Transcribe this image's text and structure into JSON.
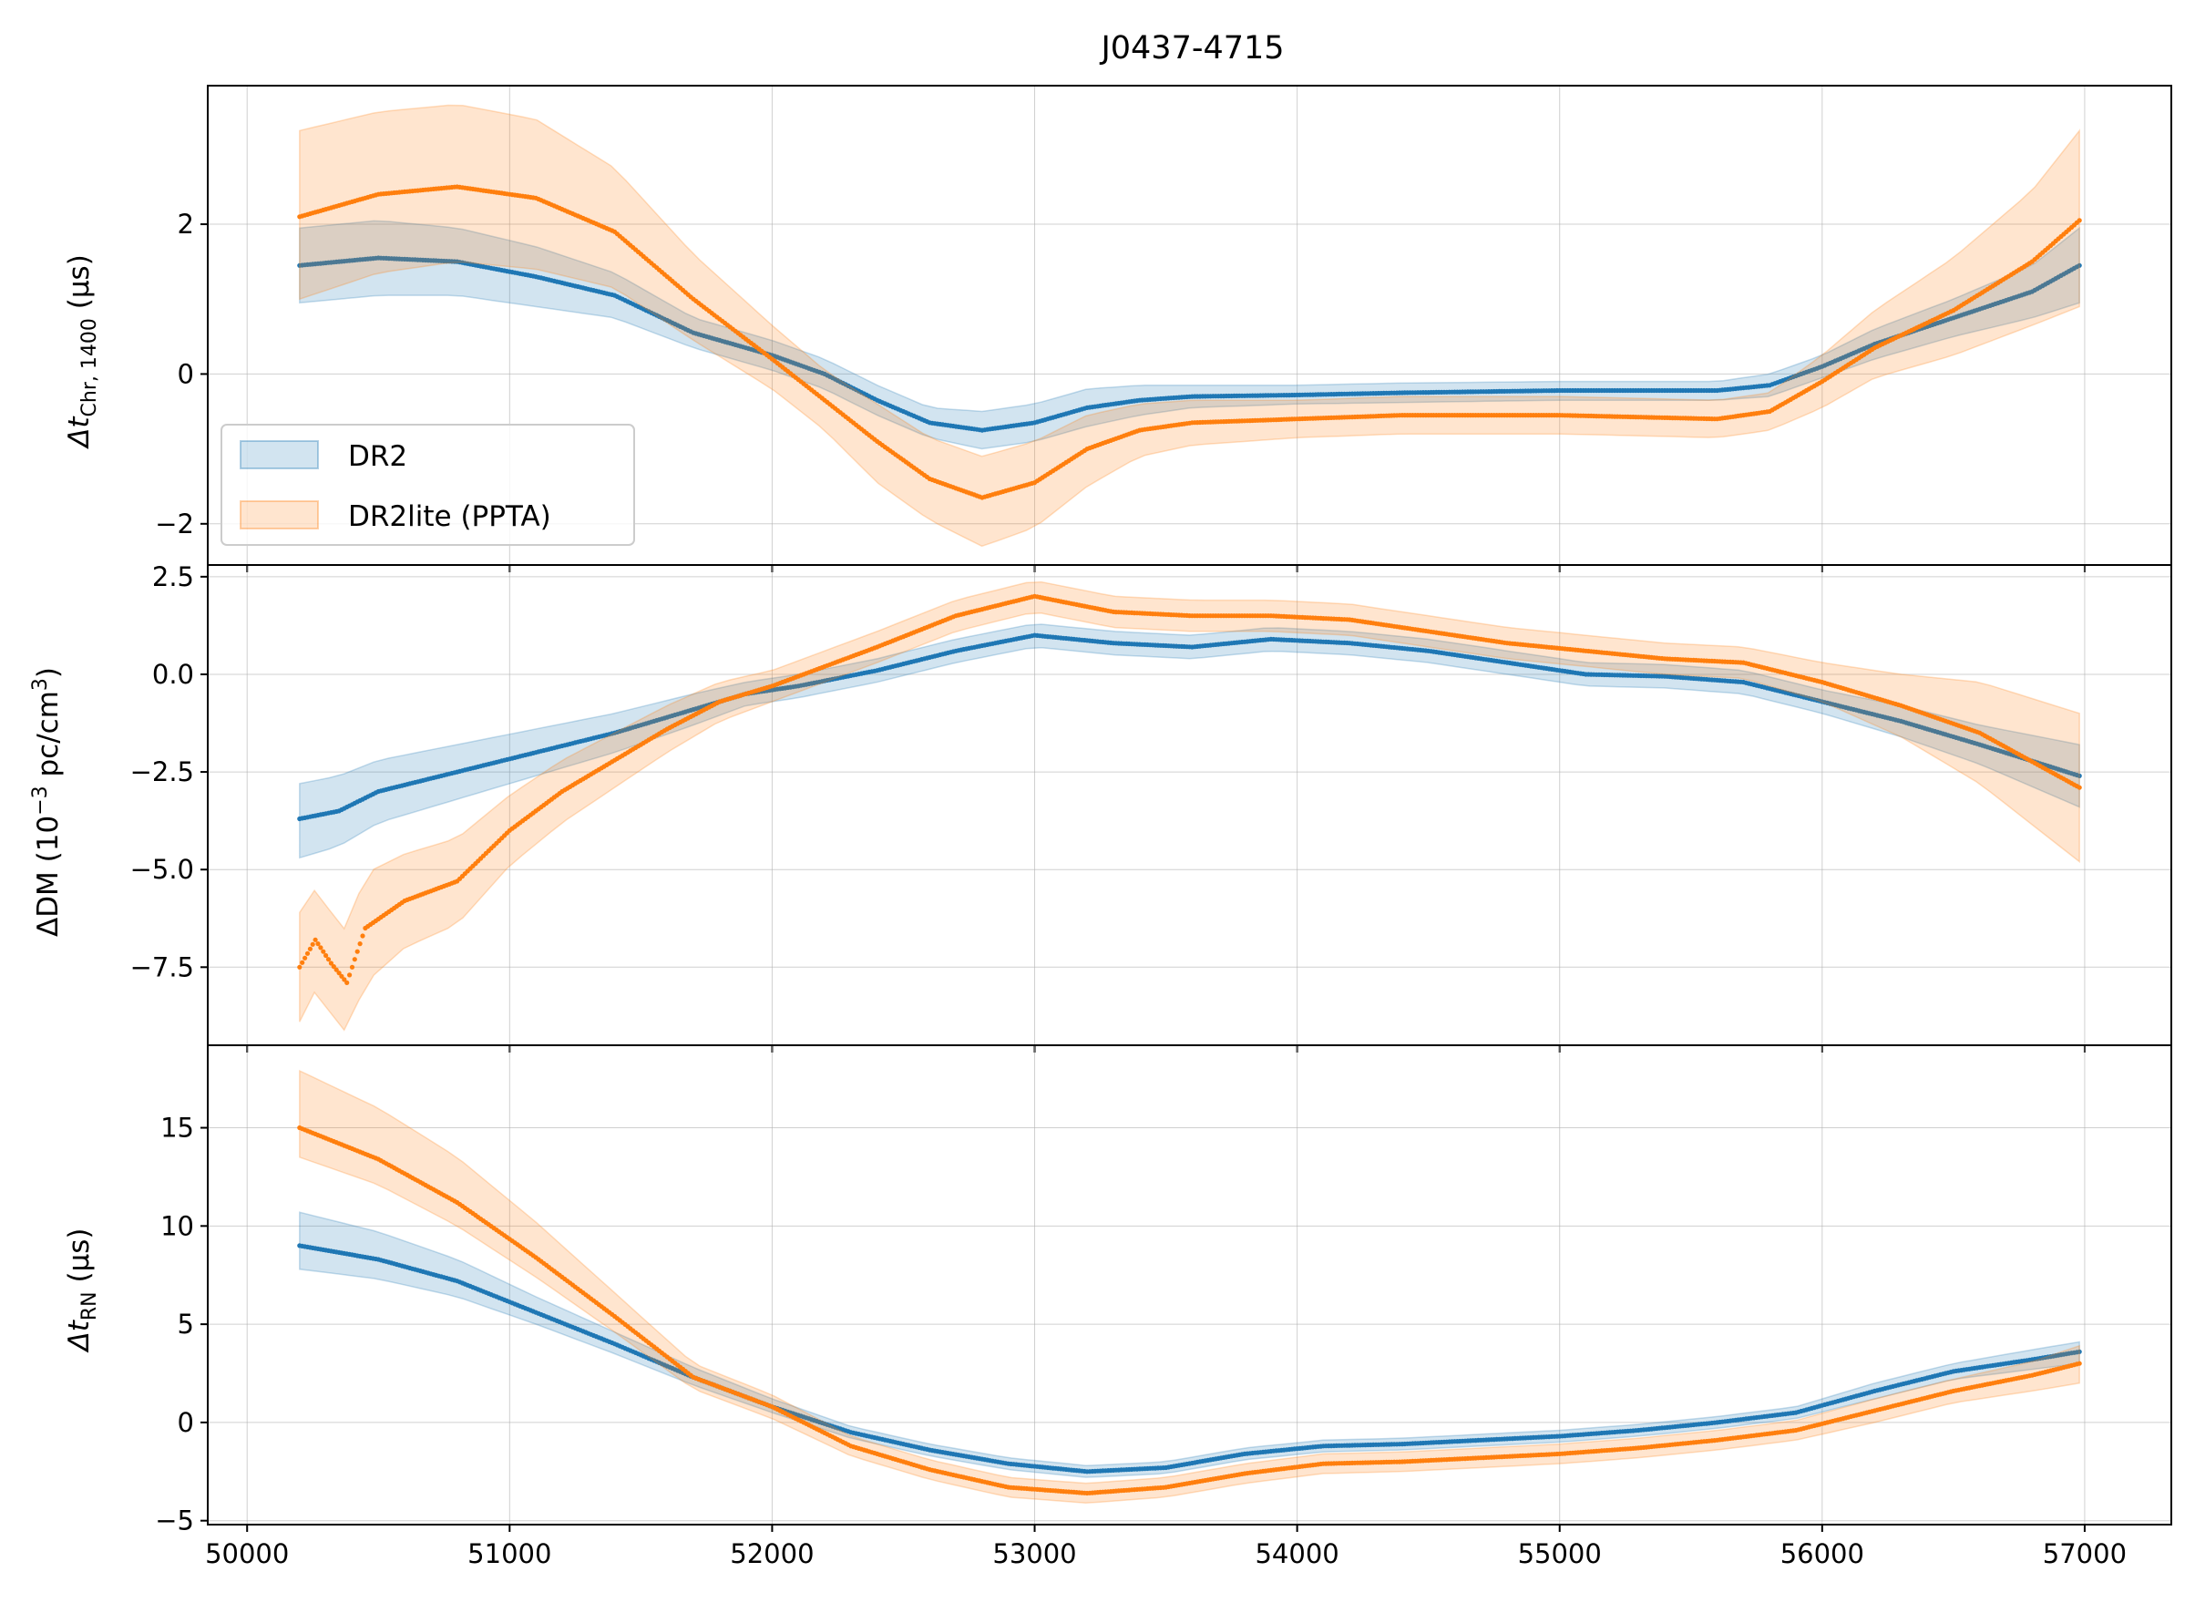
{
  "title": "J0437-4715",
  "colors": {
    "dr2": "#1f77b4",
    "dr2lite": "#ff7f0e",
    "grid": "#b0b0b0",
    "axes": "#000000"
  },
  "legend": {
    "location": "lower-left (top panel)",
    "items": [
      "DR2",
      "DR2lite (PPTA)"
    ]
  },
  "chart_data": [
    {
      "type": "scatter",
      "panel": "chromatic",
      "ylabel": {
        "main": "Δt",
        "sub": "Chr, 1400",
        "unit": " (μs)"
      },
      "xlim": [
        49850,
        57330
      ],
      "ylim": [
        -2.55,
        3.85
      ],
      "xticks": [
        50000,
        51000,
        52000,
        53000,
        54000,
        55000,
        56000,
        57000
      ],
      "yticks": [
        -2,
        0,
        2
      ],
      "ytick_labels": [
        "−2",
        "0",
        "2"
      ],
      "grid": true,
      "series": [
        {
          "name": "DR2",
          "x": [
            50200,
            50500,
            50800,
            51100,
            51400,
            51700,
            52000,
            52200,
            52400,
            52600,
            52800,
            53000,
            53200,
            53400,
            53600,
            54000,
            54400,
            55000,
            55600,
            55800,
            56000,
            56200,
            56500,
            56800,
            56980
          ],
          "y": [
            1.45,
            1.55,
            1.5,
            1.3,
            1.05,
            0.55,
            0.25,
            0.0,
            -0.35,
            -0.65,
            -0.75,
            -0.65,
            -0.45,
            -0.35,
            -0.3,
            -0.28,
            -0.25,
            -0.22,
            -0.22,
            -0.15,
            0.1,
            0.4,
            0.75,
            1.1,
            1.45
          ],
          "lower": [
            0.95,
            1.05,
            1.05,
            0.9,
            0.75,
            0.35,
            0.05,
            -0.2,
            -0.55,
            -0.85,
            -1.0,
            -0.9,
            -0.7,
            -0.55,
            -0.45,
            -0.4,
            -0.38,
            -0.35,
            -0.35,
            -0.3,
            -0.05,
            0.2,
            0.5,
            0.75,
            0.95
          ],
          "upper": [
            1.95,
            2.05,
            1.95,
            1.7,
            1.35,
            0.75,
            0.45,
            0.2,
            -0.15,
            -0.45,
            -0.5,
            -0.4,
            -0.2,
            -0.15,
            -0.15,
            -0.15,
            -0.12,
            -0.1,
            -0.1,
            0.0,
            0.25,
            0.6,
            1.0,
            1.45,
            1.95
          ]
        },
        {
          "name": "DR2lite (PPTA)",
          "x": [
            50200,
            50500,
            50800,
            51100,
            51400,
            51700,
            52000,
            52200,
            52400,
            52600,
            52800,
            53000,
            53200,
            53400,
            53600,
            54000,
            54400,
            55000,
            55600,
            55800,
            56000,
            56200,
            56500,
            56800,
            56980
          ],
          "y": [
            2.1,
            2.4,
            2.5,
            2.35,
            1.9,
            1.0,
            0.2,
            -0.35,
            -0.9,
            -1.4,
            -1.65,
            -1.45,
            -1.0,
            -0.75,
            -0.65,
            -0.6,
            -0.55,
            -0.55,
            -0.6,
            -0.5,
            -0.1,
            0.35,
            0.85,
            1.5,
            2.05
          ],
          "lower": [
            1.0,
            1.35,
            1.5,
            1.4,
            1.15,
            0.45,
            -0.2,
            -0.75,
            -1.45,
            -1.95,
            -2.3,
            -2.05,
            -1.5,
            -1.1,
            -0.95,
            -0.85,
            -0.8,
            -0.8,
            -0.85,
            -0.75,
            -0.45,
            -0.05,
            0.25,
            0.65,
            0.9
          ],
          "upper": [
            3.25,
            3.5,
            3.6,
            3.4,
            2.75,
            1.6,
            0.65,
            0.05,
            -0.4,
            -0.85,
            -1.1,
            -0.9,
            -0.55,
            -0.4,
            -0.35,
            -0.35,
            -0.3,
            -0.3,
            -0.35,
            -0.25,
            0.25,
            0.85,
            1.55,
            2.45,
            3.25
          ]
        }
      ]
    },
    {
      "type": "scatter",
      "panel": "dm",
      "ylabel": {
        "main": "ΔDM (10",
        "sup": "−3",
        "mid": " pc/cm",
        "sup2": "3",
        "end": ")"
      },
      "xlim": [
        49850,
        57330
      ],
      "ylim": [
        -9.5,
        2.8
      ],
      "xticks": [
        50000,
        51000,
        52000,
        53000,
        54000,
        55000,
        56000,
        57000
      ],
      "yticks": [
        -7.5,
        -5.0,
        -2.5,
        0.0,
        2.5
      ],
      "ytick_labels": [
        "−7.5",
        "−5.0",
        "−2.5",
        "0.0",
        "2.5"
      ],
      "grid": true,
      "series": [
        {
          "name": "DR2",
          "x": [
            50200,
            50350,
            50500,
            50800,
            51100,
            51400,
            51700,
            51900,
            52100,
            52400,
            52700,
            53000,
            53300,
            53600,
            53900,
            54200,
            54500,
            54800,
            55100,
            55400,
            55700,
            56000,
            56300,
            56600,
            56980
          ],
          "y": [
            -3.7,
            -3.5,
            -3.0,
            -2.5,
            -2.0,
            -1.5,
            -0.9,
            -0.5,
            -0.3,
            0.1,
            0.6,
            1.0,
            0.8,
            0.7,
            0.9,
            0.8,
            0.6,
            0.3,
            0.0,
            -0.05,
            -0.2,
            -0.7,
            -1.2,
            -1.8,
            -2.6
          ],
          "lower": [
            -4.7,
            -4.4,
            -3.8,
            -3.2,
            -2.6,
            -2.0,
            -1.3,
            -0.8,
            -0.6,
            -0.2,
            0.3,
            0.7,
            0.5,
            0.4,
            0.6,
            0.5,
            0.3,
            0.0,
            -0.3,
            -0.35,
            -0.5,
            -1.0,
            -1.6,
            -2.3,
            -3.4
          ],
          "upper": [
            -2.8,
            -2.6,
            -2.2,
            -1.8,
            -1.4,
            -1.0,
            -0.5,
            -0.2,
            0.0,
            0.4,
            0.9,
            1.3,
            1.1,
            1.0,
            1.2,
            1.1,
            0.9,
            0.6,
            0.3,
            0.25,
            0.1,
            -0.4,
            -0.8,
            -1.3,
            -1.8
          ]
        },
        {
          "name": "DR2lite (PPTA)",
          "x": [
            50200,
            50260,
            50320,
            50380,
            50450,
            50600,
            50800,
            51000,
            51200,
            51400,
            51600,
            51800,
            52000,
            52200,
            52400,
            52700,
            53000,
            53300,
            53600,
            53900,
            54200,
            54500,
            54800,
            55100,
            55400,
            55700,
            56000,
            56300,
            56600,
            56980
          ],
          "y": [
            -7.5,
            -6.8,
            -7.4,
            -7.9,
            -6.5,
            -5.8,
            -5.3,
            -4.0,
            -3.0,
            -2.2,
            -1.4,
            -0.7,
            -0.3,
            0.2,
            0.7,
            1.5,
            2.0,
            1.6,
            1.5,
            1.5,
            1.4,
            1.1,
            0.8,
            0.6,
            0.4,
            0.3,
            -0.2,
            -0.8,
            -1.5,
            -2.9
          ],
          "lower": [
            -8.9,
            -8.1,
            -8.7,
            -9.2,
            -7.9,
            -7.0,
            -6.4,
            -4.9,
            -3.8,
            -2.9,
            -2.0,
            -1.2,
            -0.7,
            -0.2,
            0.3,
            1.1,
            1.6,
            1.2,
            1.1,
            1.1,
            1.0,
            0.7,
            0.4,
            0.2,
            0.0,
            -0.1,
            -0.7,
            -1.6,
            -2.8,
            -4.8
          ],
          "upper": [
            -6.1,
            -5.5,
            -6.1,
            -6.6,
            -5.1,
            -4.6,
            -4.2,
            -3.1,
            -2.2,
            -1.5,
            -0.8,
            -0.2,
            0.1,
            0.6,
            1.1,
            1.9,
            2.4,
            2.0,
            1.9,
            1.9,
            1.8,
            1.5,
            1.2,
            1.0,
            0.8,
            0.7,
            0.3,
            0.0,
            -0.2,
            -1.0
          ]
        }
      ]
    },
    {
      "type": "scatter",
      "panel": "red-noise",
      "ylabel": {
        "main": "Δt",
        "sub": "RN",
        "unit": " (μs)"
      },
      "xlim": [
        49850,
        57330
      ],
      "ylim": [
        -5.2,
        19.2
      ],
      "xlabel": "",
      "xticks": [
        50000,
        51000,
        52000,
        53000,
        54000,
        55000,
        56000,
        57000
      ],
      "xtick_labels": [
        "50000",
        "51000",
        "52000",
        "53000",
        "54000",
        "55000",
        "56000",
        "57000"
      ],
      "yticks": [
        -5,
        0,
        5,
        10,
        15
      ],
      "ytick_labels": [
        "−5",
        "0",
        "5",
        "10",
        "15"
      ],
      "grid": true,
      "series": [
        {
          "name": "DR2",
          "x": [
            50200,
            50500,
            50800,
            51100,
            51400,
            51700,
            52000,
            52300,
            52600,
            52900,
            53200,
            53500,
            53800,
            54100,
            54400,
            54700,
            55000,
            55300,
            55600,
            55900,
            56200,
            56500,
            56800,
            56980
          ],
          "y": [
            9.0,
            8.3,
            7.2,
            5.6,
            4.0,
            2.3,
            0.8,
            -0.5,
            -1.4,
            -2.1,
            -2.5,
            -2.3,
            -1.6,
            -1.2,
            -1.1,
            -0.9,
            -0.7,
            -0.4,
            0.0,
            0.5,
            1.6,
            2.6,
            3.2,
            3.6
          ],
          "lower": [
            7.8,
            7.3,
            6.4,
            5.0,
            3.5,
            1.9,
            0.5,
            -0.8,
            -1.7,
            -2.4,
            -2.8,
            -2.6,
            -1.9,
            -1.5,
            -1.4,
            -1.2,
            -1.0,
            -0.7,
            -0.3,
            0.2,
            1.2,
            2.2,
            2.7,
            3.0
          ],
          "upper": [
            10.7,
            9.7,
            8.3,
            6.4,
            4.6,
            2.8,
            1.2,
            -0.2,
            -1.1,
            -1.8,
            -2.2,
            -2.0,
            -1.3,
            -0.9,
            -0.8,
            -0.6,
            -0.4,
            -0.1,
            0.3,
            0.8,
            2.0,
            3.0,
            3.7,
            4.1
          ]
        },
        {
          "name": "DR2lite (PPTA)",
          "x": [
            50200,
            50500,
            50800,
            51100,
            51400,
            51700,
            52000,
            52300,
            52600,
            52900,
            53200,
            53500,
            53800,
            54100,
            54400,
            54700,
            55000,
            55300,
            55600,
            55900,
            56200,
            56500,
            56800,
            56980
          ],
          "y": [
            15.0,
            13.4,
            11.2,
            8.4,
            5.4,
            2.3,
            0.8,
            -1.2,
            -2.4,
            -3.3,
            -3.6,
            -3.3,
            -2.6,
            -2.1,
            -2.0,
            -1.8,
            -1.6,
            -1.3,
            -0.9,
            -0.4,
            0.6,
            1.6,
            2.4,
            3.0
          ],
          "lower": [
            13.5,
            12.1,
            10.0,
            7.4,
            4.6,
            1.7,
            0.2,
            -1.7,
            -2.9,
            -3.8,
            -4.1,
            -3.8,
            -3.1,
            -2.6,
            -2.5,
            -2.3,
            -2.1,
            -1.8,
            -1.4,
            -0.9,
            0.0,
            1.0,
            1.6,
            2.0
          ],
          "upper": [
            17.9,
            16.0,
            13.5,
            10.2,
            6.6,
            3.0,
            1.4,
            -0.7,
            -1.9,
            -2.8,
            -3.1,
            -2.8,
            -2.1,
            -1.6,
            -1.5,
            -1.3,
            -1.1,
            -0.8,
            -0.4,
            0.1,
            1.2,
            2.2,
            3.1,
            3.9
          ]
        }
      ]
    }
  ]
}
